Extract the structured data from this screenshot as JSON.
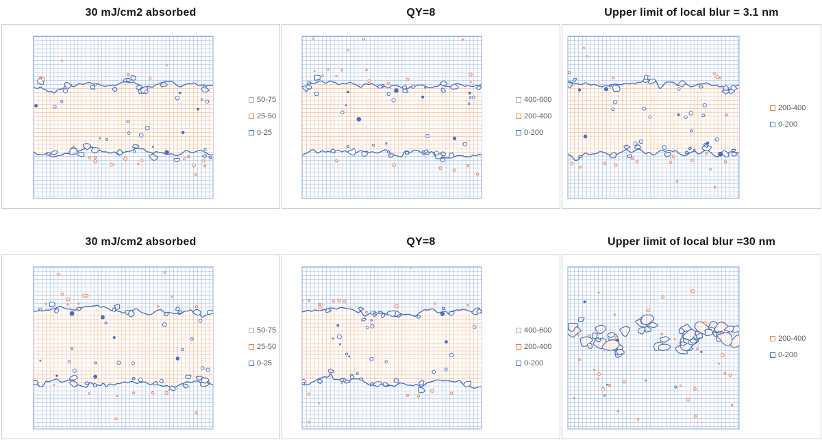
{
  "colors": {
    "background_grid": "#8FA9DC",
    "band_fill_grid": "#F1A46F",
    "contour_line": "#4472C4",
    "speck_orange_stroke": "#ED8A4E",
    "speck_orange_fill": "#FCE8DA",
    "panel_border": "#C9C9C9",
    "legend_text": "#595959",
    "title_text": "#161616"
  },
  "chart_data": [
    {
      "type": "heatmap",
      "title": "30 mJ/cm2 absorbed",
      "pattern": "horizontal-band",
      "legend_position": "right",
      "legend": [
        {
          "label": "50-75",
          "color": "#A6A6A6"
        },
        {
          "label": "25-50",
          "color": "#ED7D31"
        },
        {
          "label": "0-25",
          "color": "#4472C4"
        }
      ],
      "band": {
        "top_frac": 0.3,
        "bottom_frac": 0.715,
        "band_value_range": "25-50",
        "outside_value_range": "0-25"
      },
      "grid": {
        "cols": 45,
        "rows": 41
      },
      "axes": {
        "x_ticks": "none",
        "y_ticks": "none"
      }
    },
    {
      "type": "heatmap",
      "title": "QY=8",
      "pattern": "horizontal-band",
      "legend_position": "right",
      "legend": [
        {
          "label": "400-600",
          "color": "#A6A6A6"
        },
        {
          "label": "200-400",
          "color": "#ED7D31"
        },
        {
          "label": "0-200",
          "color": "#4472C4"
        }
      ],
      "band": {
        "top_frac": 0.3,
        "bottom_frac": 0.715,
        "band_value_range": "200-400",
        "outside_value_range": "0-200"
      },
      "grid": {
        "cols": 45,
        "rows": 41
      },
      "axes": {
        "x_ticks": "none",
        "y_ticks": "none"
      }
    },
    {
      "type": "heatmap",
      "title": "Upper limit of local blur = 3.1 nm",
      "pattern": "horizontal-band",
      "legend_position": "right",
      "legend": [
        {
          "label": "200-400",
          "color": "#ED7D31"
        },
        {
          "label": "0-200",
          "color": "#4472C4"
        }
      ],
      "band": {
        "top_frac": 0.3,
        "bottom_frac": 0.72,
        "band_value_range": "200-400",
        "outside_value_range": "0-200"
      },
      "grid": {
        "cols": 43,
        "rows": 41
      },
      "axes": {
        "x_ticks": "none",
        "y_ticks": "none"
      }
    },
    {
      "type": "heatmap",
      "title": "30 mJ/cm2 absorbed",
      "pattern": "horizontal-band",
      "legend_position": "right",
      "legend": [
        {
          "label": "50-75",
          "color": "#A6A6A6"
        },
        {
          "label": "25-50",
          "color": "#ED7D31"
        },
        {
          "label": "0-25",
          "color": "#4472C4"
        }
      ],
      "band": {
        "top_frac": 0.27,
        "bottom_frac": 0.715,
        "band_value_range": "25-50",
        "outside_value_range": "0-25"
      },
      "grid": {
        "cols": 45,
        "rows": 41
      },
      "axes": {
        "x_ticks": "none",
        "y_ticks": "none"
      }
    },
    {
      "type": "heatmap",
      "title": "QY=8",
      "pattern": "horizontal-band",
      "legend_position": "right",
      "legend": [
        {
          "label": "400-600",
          "color": "#A6A6A6"
        },
        {
          "label": "200-400",
          "color": "#ED7D31"
        },
        {
          "label": "0-200",
          "color": "#4472C4"
        }
      ],
      "band": {
        "top_frac": 0.27,
        "bottom_frac": 0.715,
        "band_value_range": "200-400",
        "outside_value_range": "0-200"
      },
      "grid": {
        "cols": 45,
        "rows": 41
      },
      "axes": {
        "x_ticks": "none",
        "y_ticks": "none"
      }
    },
    {
      "type": "heatmap",
      "title": "Upper limit of local blur =30 nm",
      "pattern": "scattered-blobs",
      "legend_position": "right",
      "legend": [
        {
          "label": "200-400",
          "color": "#ED7D31"
        },
        {
          "label": "0-200",
          "color": "#4472C4"
        }
      ],
      "blobs": {
        "value_range": "200-400",
        "background_value_range": "0-200",
        "center_frac": 0.42,
        "spread_frac": 0.18
      },
      "grid": {
        "cols": 43,
        "rows": 41
      },
      "axes": {
        "x_ticks": "none",
        "y_ticks": "none"
      }
    }
  ]
}
